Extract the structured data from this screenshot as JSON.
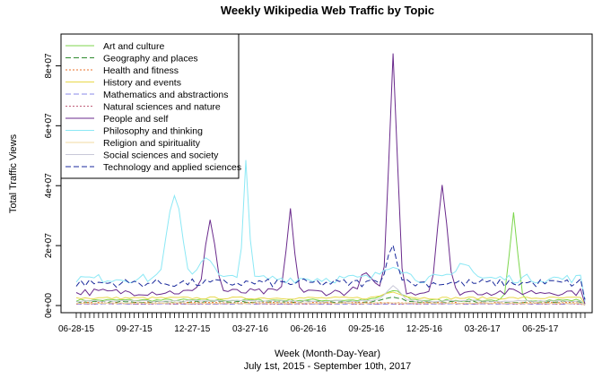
{
  "chart_data": {
    "type": "line",
    "title": "Weekly Wikipedia Web Traffic by Topic",
    "xlabel": "Week (Month-Day-Year)",
    "xsublabel": "July 1st, 2015 - September 10th, 2017",
    "ylabel": "Total Traffic Views",
    "ylim": [
      0,
      90000000
    ],
    "yticks": [
      0,
      20000000,
      40000000,
      60000000,
      80000000
    ],
    "ytick_labels": [
      "0e+00",
      "2e+07",
      "4e+07",
      "6e+07",
      "8e+07"
    ],
    "x_weeks": 115,
    "xtick_labels": [
      "06-28-15",
      "09-27-15",
      "12-27-15",
      "03-27-16",
      "06-26-16",
      "09-25-16",
      "12-25-16",
      "03-26-17",
      "06-25-17"
    ],
    "xtick_every": 13,
    "legend_position": "top-left",
    "grid": false,
    "series": [
      {
        "name": "Art and culture",
        "color": "#7CD64C",
        "dash": "",
        "base": 1800000,
        "noise": 400000,
        "spikes": [
          [
            98,
            29000000,
            1.2
          ],
          [
            71,
            3000000,
            3
          ]
        ]
      },
      {
        "name": "Geography and places",
        "color": "#2E8B2E",
        "dash": "6,3",
        "base": 1200000,
        "noise": 300000,
        "spikes": [
          [
            71,
            1500000,
            3
          ]
        ]
      },
      {
        "name": "Health and fitness",
        "color": "#E8702A",
        "dash": "2,2",
        "base": 900000,
        "noise": 200000,
        "spikes": []
      },
      {
        "name": "History and events",
        "color": "#E8D84A",
        "dash": "",
        "base": 2500000,
        "noise": 400000,
        "spikes": [
          [
            71,
            2000000,
            3
          ]
        ]
      },
      {
        "name": "Mathematics and abstractions",
        "color": "#8A8AE8",
        "dash": "6,3",
        "base": 500000,
        "noise": 100000,
        "spikes": []
      },
      {
        "name": "Natural sciences and nature",
        "color": "#C0607A",
        "dash": "2,2",
        "base": 600000,
        "noise": 150000,
        "spikes": []
      },
      {
        "name": "People and self",
        "color": "#6A2A8C",
        "dash": "",
        "base": 4500000,
        "noise": 1200000,
        "spikes": [
          [
            30,
            24000000,
            1.6
          ],
          [
            48,
            27000000,
            1.2
          ],
          [
            71,
            79000000,
            1.3
          ],
          [
            82,
            36000000,
            1.5
          ],
          [
            65,
            6000000,
            2
          ]
        ]
      },
      {
        "name": "Philosophy and thinking",
        "color": "#8BE8F5",
        "dash": "",
        "base": 9000000,
        "noise": 1500000,
        "spikes": [
          [
            22,
            27000000,
            2.2
          ],
          [
            38,
            40000000,
            0.9
          ],
          [
            29,
            8000000,
            2
          ],
          [
            71,
            5000000,
            3
          ],
          [
            87,
            6000000,
            2
          ]
        ]
      },
      {
        "name": "Religion and spirituality",
        "color": "#F2D8A0",
        "dash": "",
        "base": 800000,
        "noise": 150000,
        "spikes": []
      },
      {
        "name": "Social sciences and society",
        "color": "#C8C8D8",
        "dash": "",
        "base": 1500000,
        "noise": 300000,
        "spikes": [
          [
            71,
            5000000,
            2
          ]
        ]
      },
      {
        "name": "Technology and applied sciences",
        "color": "#1A2A9C",
        "dash": "6,3",
        "base": 7500000,
        "noise": 1400000,
        "spikes": [
          [
            71,
            10000000,
            1.5
          ],
          [
            70,
            3000000,
            2
          ],
          [
            114,
            5000000,
            0.6
          ]
        ]
      }
    ]
  }
}
